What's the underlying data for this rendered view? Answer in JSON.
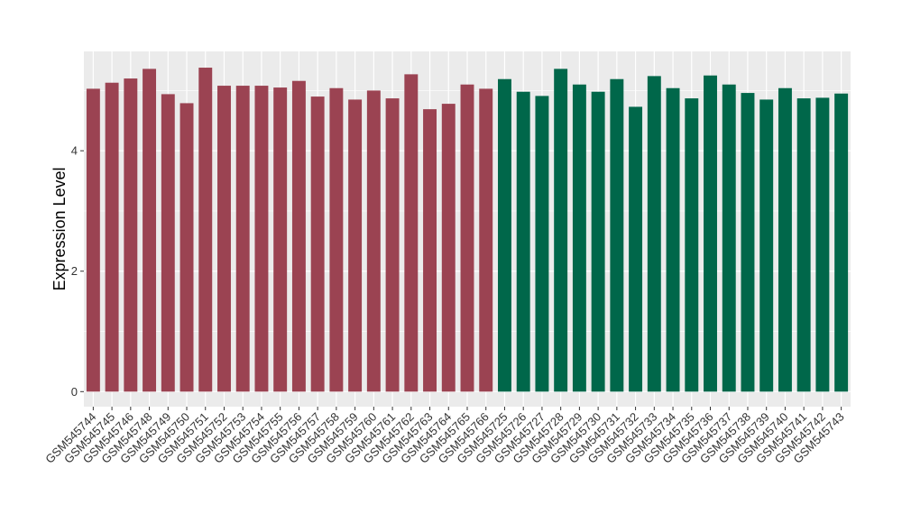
{
  "chart_data": {
    "type": "bar",
    "title": "",
    "xlabel": "",
    "ylabel": "Expression Level",
    "ylim": [
      -0.25,
      5.65
    ],
    "yticks": [
      0,
      2,
      4
    ],
    "grid": true,
    "legend": "none",
    "categories": [
      "GSM545744",
      "GSM545745",
      "GSM545746",
      "GSM545748",
      "GSM545749",
      "GSM545750",
      "GSM545751",
      "GSM545752",
      "GSM545753",
      "GSM545754",
      "GSM545755",
      "GSM545756",
      "GSM545757",
      "GSM545758",
      "GSM545759",
      "GSM545760",
      "GSM545761",
      "GSM545762",
      "GSM545763",
      "GSM545764",
      "GSM545765",
      "GSM545766",
      "GSM545725",
      "GSM545726",
      "GSM545727",
      "GSM545728",
      "GSM545729",
      "GSM545730",
      "GSM545731",
      "GSM545732",
      "GSM545733",
      "GSM545734",
      "GSM545735",
      "GSM545736",
      "GSM545737",
      "GSM545738",
      "GSM545739",
      "GSM545740",
      "GSM545741",
      "GSM545742",
      "GSM545743"
    ],
    "values": [
      5.03,
      5.13,
      5.2,
      5.36,
      4.94,
      4.79,
      5.38,
      5.08,
      5.08,
      5.08,
      5.05,
      5.16,
      4.9,
      5.04,
      4.85,
      5.0,
      4.87,
      5.27,
      4.69,
      4.78,
      5.1,
      5.03,
      5.19,
      4.98,
      4.91,
      5.36,
      5.1,
      4.98,
      5.19,
      4.73,
      5.24,
      5.04,
      4.87,
      5.25,
      5.1,
      4.96,
      4.85,
      5.04,
      4.87,
      4.88,
      4.95
    ],
    "colors": [
      "#9b4352",
      "#9b4352",
      "#9b4352",
      "#9b4352",
      "#9b4352",
      "#9b4352",
      "#9b4352",
      "#9b4352",
      "#9b4352",
      "#9b4352",
      "#9b4352",
      "#9b4352",
      "#9b4352",
      "#9b4352",
      "#9b4352",
      "#9b4352",
      "#9b4352",
      "#9b4352",
      "#9b4352",
      "#9b4352",
      "#9b4352",
      "#9b4352",
      "#00674a",
      "#00674a",
      "#00674a",
      "#00674a",
      "#00674a",
      "#00674a",
      "#00674a",
      "#00674a",
      "#00674a",
      "#00674a",
      "#00674a",
      "#00674a",
      "#00674a",
      "#00674a",
      "#00674a",
      "#00674a",
      "#00674a",
      "#00674a",
      "#00674a"
    ],
    "panel_background": "#ebebeb",
    "grid_color": "#ffffff"
  }
}
